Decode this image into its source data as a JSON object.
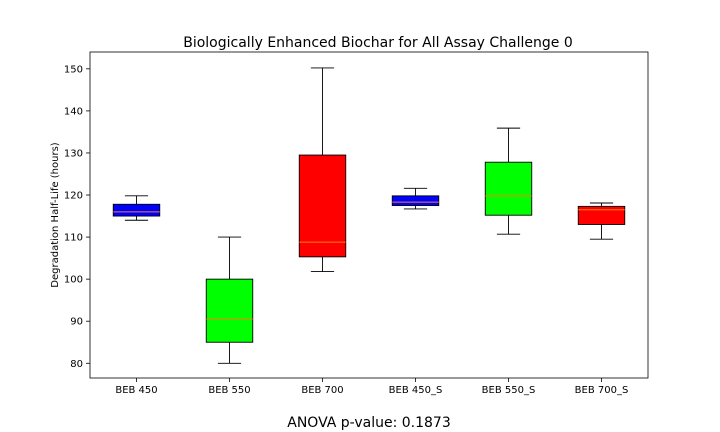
{
  "chart_data": {
    "type": "box",
    "title": "Biologically Enhanced Biochar for All Assay Challenge 0",
    "xlabel": "",
    "ylabel": "Degradation Half-Life (hours)",
    "ylim": [
      76.5,
      154
    ],
    "yticks": [
      80,
      90,
      100,
      110,
      120,
      130,
      140,
      150
    ],
    "grid": false,
    "categories": [
      "BEB 450",
      "BEB 550",
      "BEB 700",
      "BEB 450_S",
      "BEB 550_S",
      "BEB 700_S"
    ],
    "boxes": [
      {
        "category": "BEB 450",
        "whisker_low": 114.0,
        "q1": 115.0,
        "median": 116.0,
        "q3": 117.8,
        "whisker_high": 119.8,
        "color": "#0000ff"
      },
      {
        "category": "BEB 550",
        "whisker_low": 80.0,
        "q1": 85.0,
        "median": 90.5,
        "q3": 100.0,
        "whisker_high": 110.0,
        "color": "#00ff00"
      },
      {
        "category": "BEB 700",
        "whisker_low": 101.8,
        "q1": 105.3,
        "median": 108.8,
        "q3": 129.5,
        "whisker_high": 150.2,
        "color": "#ff0000"
      },
      {
        "category": "BEB 450_S",
        "whisker_low": 116.7,
        "q1": 117.5,
        "median": 118.3,
        "q3": 119.8,
        "whisker_high": 121.6,
        "color": "#0000ff"
      },
      {
        "category": "BEB 550_S",
        "whisker_low": 110.7,
        "q1": 115.2,
        "median": 119.8,
        "q3": 127.8,
        "whisker_high": 135.9,
        "color": "#00ff00"
      },
      {
        "category": "BEB 700_S",
        "whisker_low": 109.5,
        "q1": 113.0,
        "median": 116.5,
        "q3": 117.3,
        "whisker_high": 118.1,
        "color": "#ff0000"
      }
    ],
    "median_color": "#ff7f0e",
    "annotation": "ANOVA p-value: 0.1873"
  }
}
